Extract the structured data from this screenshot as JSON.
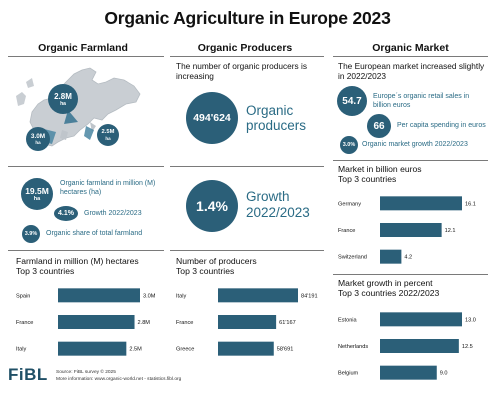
{
  "title": "Organic Agriculture in Europe 2023",
  "columns": [
    "Organic Farmland",
    "Organic Producers",
    "Organic Market"
  ],
  "farmland": {
    "map_badges": [
      {
        "value": "2.8M",
        "unit": "ha"
      },
      {
        "value": "3.0M",
        "unit": "ha"
      },
      {
        "value": "2.5M",
        "unit": "ha"
      }
    ],
    "stats": [
      {
        "value": "19.5M",
        "unit": "ha",
        "label": "Organic farmland in million (M) hectares (ha)"
      },
      {
        "value": "4.1%",
        "label": "Growth 2022/2023"
      },
      {
        "value": "3.9%",
        "label": "Organic share of total farmland"
      }
    ],
    "chart_heading": "Farmland in million (M) hectares\nTop 3 countries"
  },
  "producers": {
    "intro": "The number of organic producers is increasing",
    "stats": [
      {
        "value": "494'624",
        "label": "Organic producers"
      },
      {
        "value": "1.4%",
        "label": "Growth 2022/2023"
      }
    ],
    "chart_heading": "Number of producers\nTop 3 countries"
  },
  "market": {
    "intro": "The European market increased slightly in 2022/2023",
    "stats": [
      {
        "value": "54.7",
        "label": "Europe´s organic retail sales in billion euros"
      },
      {
        "value": "66",
        "label": "Per capita spending in euros"
      },
      {
        "value": "3.0%",
        "label": "Organic market growth 2022/2023"
      }
    ],
    "chart_heading": "Market in billion euros\nTop 3 countries",
    "chart2_heading": "Market growth in percent\nTop 3 countries 2022/2023"
  },
  "footer": {
    "logo": "FiBL",
    "source": "Source: FiBL survey © 2025",
    "more": "More information: www.organic-world.net - statistics.fibl.org"
  },
  "colors": {
    "bar": "#2b5f78",
    "accent": "#2a6b85",
    "map_land": "#c9ced3"
  },
  "chart_data": [
    {
      "type": "bar",
      "orientation": "horizontal",
      "title": "Farmland in million (M) hectares Top 3 countries",
      "categories": [
        "Spain",
        "France",
        "Italy"
      ],
      "values": [
        3.0,
        2.8,
        2.5
      ],
      "value_labels": [
        "3.0M",
        "2.8M",
        "2.5M"
      ]
    },
    {
      "type": "bar",
      "orientation": "horizontal",
      "title": "Number of producers Top 3 countries",
      "categories": [
        "Italy",
        "France",
        "Greece"
      ],
      "values": [
        84191,
        61167,
        58691
      ],
      "value_labels": [
        "84'191",
        "61'167",
        "58'691"
      ]
    },
    {
      "type": "bar",
      "orientation": "horizontal",
      "title": "Market in billion euros Top 3 countries",
      "categories": [
        "Germany",
        "France",
        "Switzerland"
      ],
      "values": [
        16.1,
        12.1,
        4.2
      ],
      "value_labels": [
        "16.1",
        "12.1",
        "4.2"
      ]
    },
    {
      "type": "bar",
      "orientation": "horizontal",
      "title": "Market growth in percent Top 3 countries 2022/2023",
      "categories": [
        "Estonia",
        "Netherlands",
        "Belgium"
      ],
      "values": [
        13.0,
        12.5,
        9.0
      ],
      "value_labels": [
        "13.0",
        "12.5",
        "9.0"
      ]
    }
  ]
}
